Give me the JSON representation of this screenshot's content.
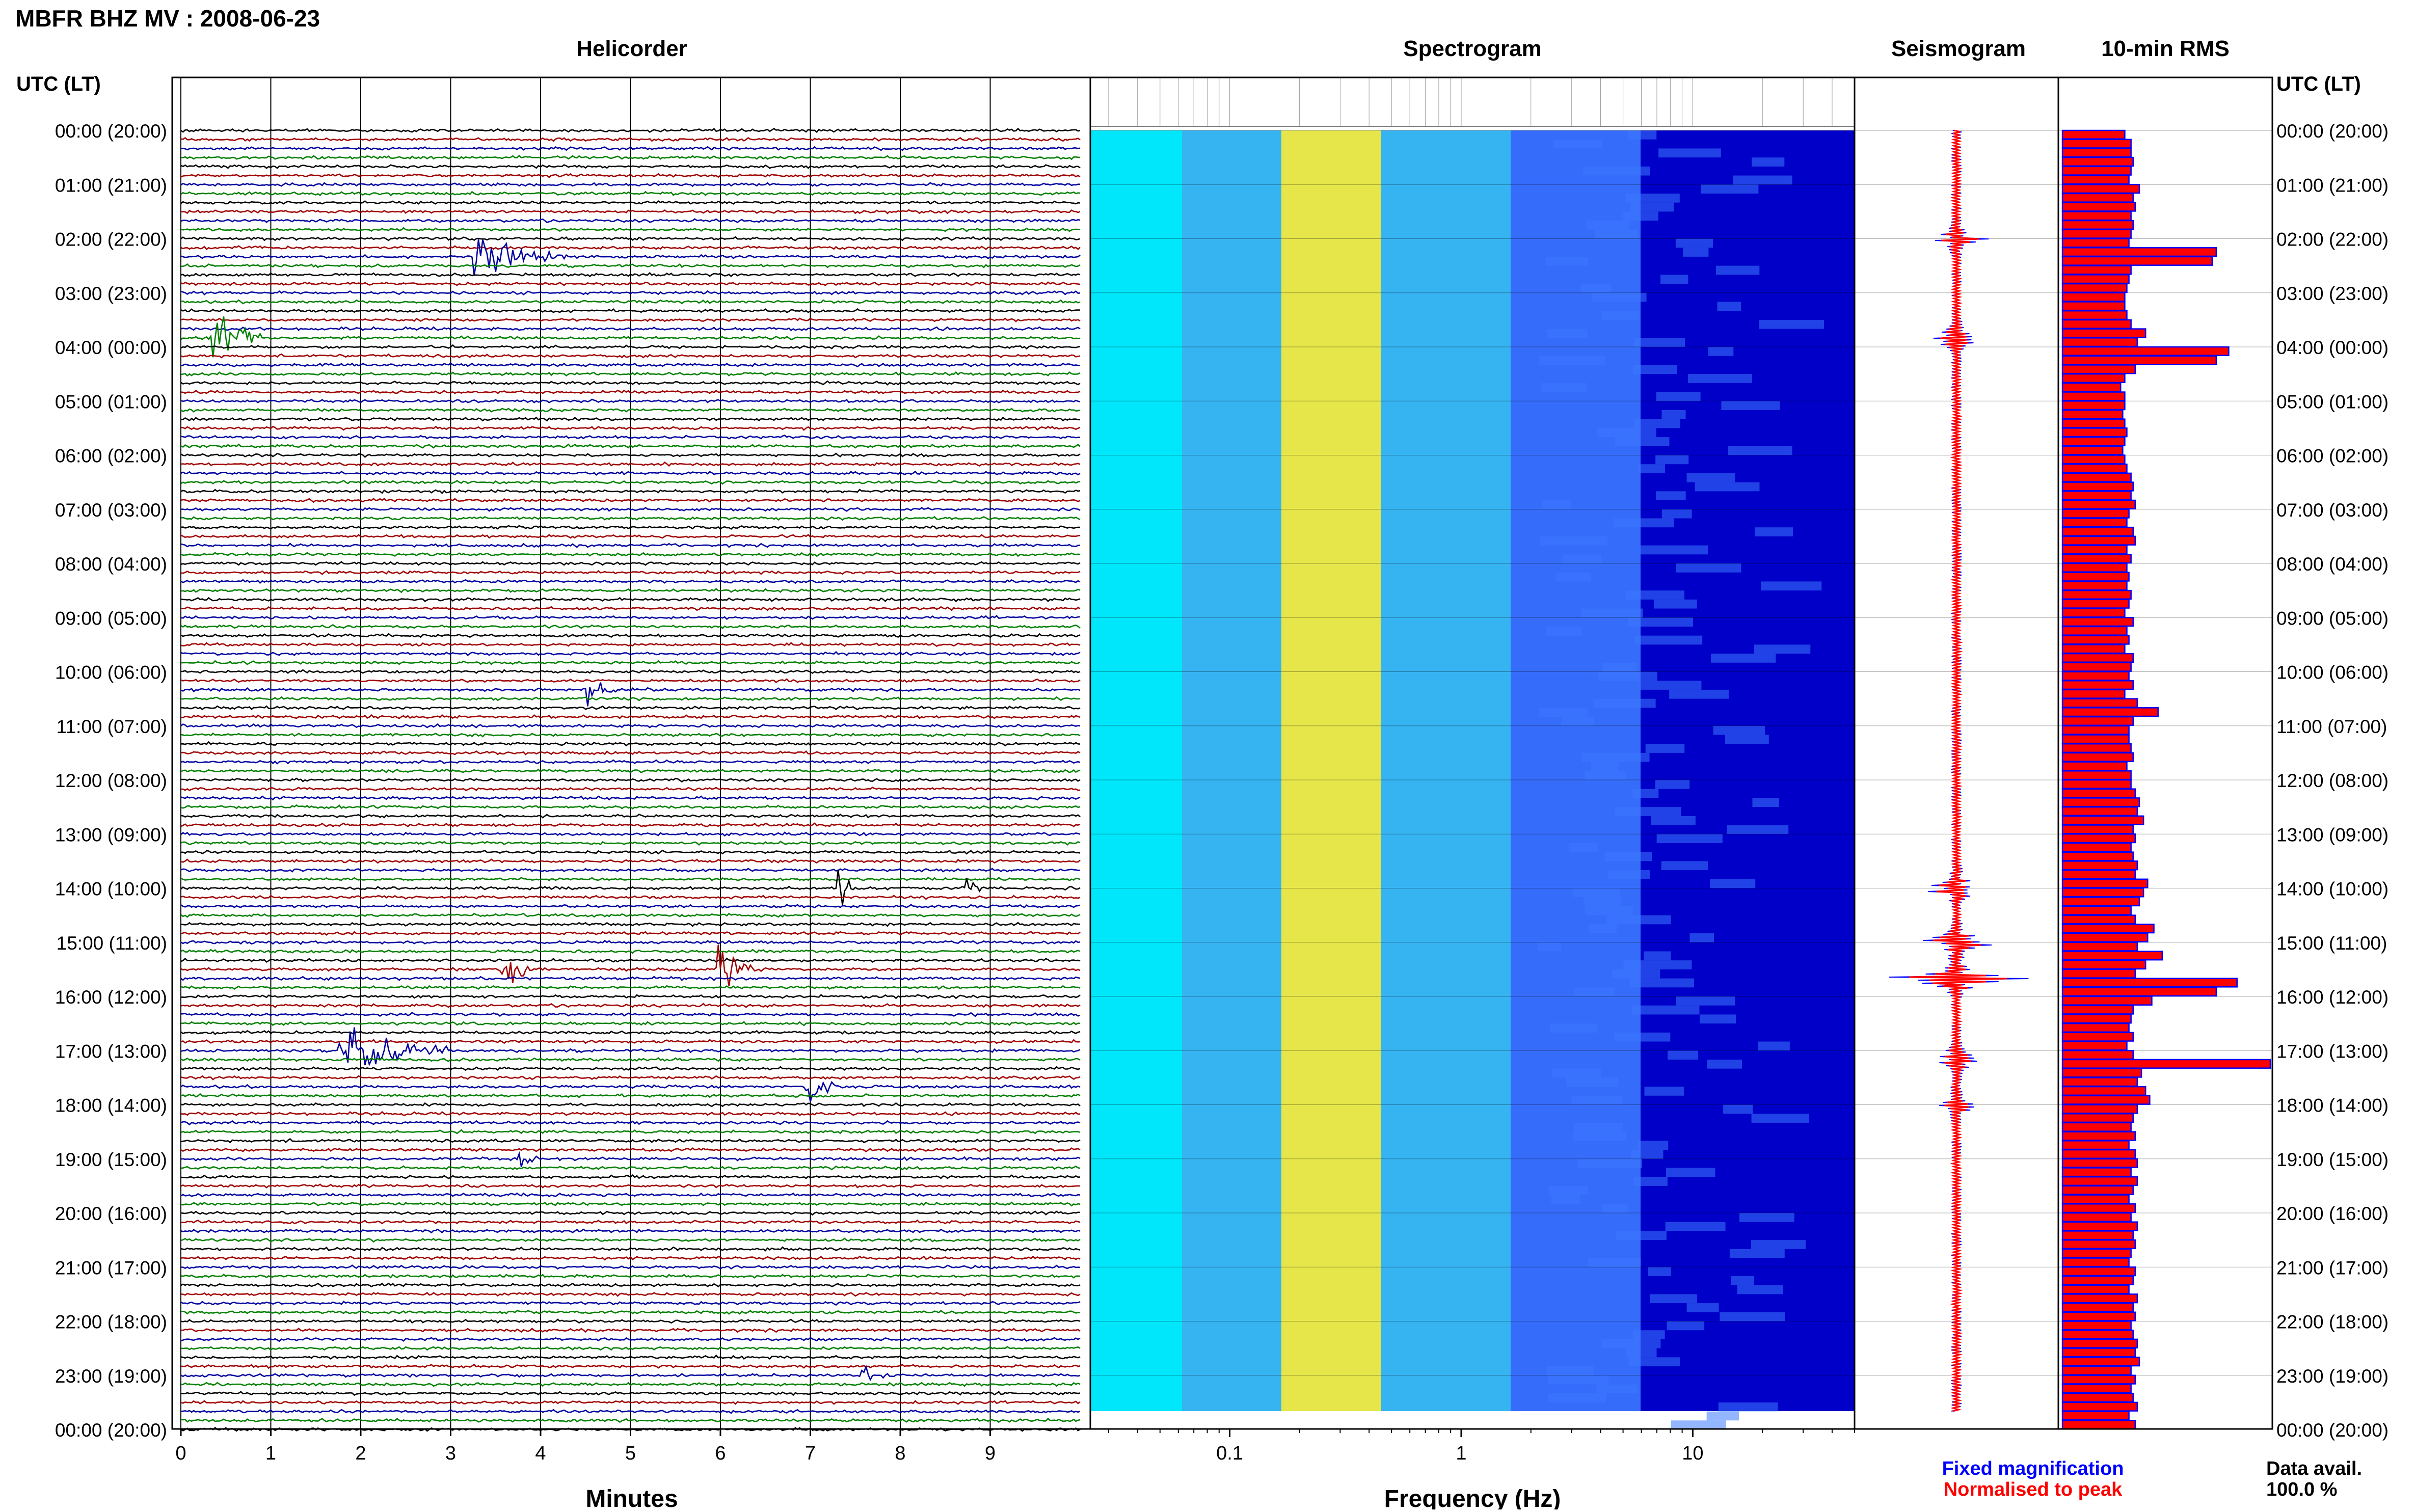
{
  "page_title": "MBFR BHZ MV : 2008-06-23",
  "headers": {
    "helicorder": "Helicorder",
    "spectrogram": "Spectrogram",
    "seismogram": "Seismogram",
    "rms": "10-min RMS",
    "utc_left": "UTC (LT)",
    "utc_right": "UTC (LT)"
  },
  "colors": {
    "trace_cycle": [
      "#000000",
      "#a00000",
      "#0000a0",
      "#008000"
    ],
    "fixed": "#0000ff",
    "normalised": "#ff0000"
  },
  "time_labels": [
    "00:00 (20:00)",
    "01:00 (21:00)",
    "02:00 (22:00)",
    "03:00 (23:00)",
    "04:00 (00:00)",
    "05:00 (01:00)",
    "06:00 (02:00)",
    "07:00 (03:00)",
    "08:00 (04:00)",
    "09:00 (05:00)",
    "10:00 (06:00)",
    "11:00 (07:00)",
    "12:00 (08:00)",
    "13:00 (09:00)",
    "14:00 (10:00)",
    "15:00 (11:00)",
    "16:00 (12:00)",
    "17:00 (13:00)",
    "18:00 (14:00)",
    "19:00 (15:00)",
    "20:00 (16:00)",
    "21:00 (17:00)",
    "22:00 (18:00)",
    "23:00 (19:00)",
    "00:00 (20:00)"
  ],
  "legend": {
    "fixed": "Fixed magnification",
    "normalised": "Normalised to peak"
  },
  "data_avail": {
    "label": "Data avail.",
    "value": "100.0 %"
  },
  "chart_data": [
    {
      "type": "line",
      "name": "helicorder",
      "title": "Helicorder",
      "xlabel": "Minutes",
      "xticks": [
        0,
        1,
        2,
        3,
        4,
        5,
        6,
        7,
        8,
        9
      ],
      "xlim": [
        0,
        10
      ],
      "rows_per_hour": 6,
      "events": [
        {
          "time": "02:20",
          "minute": 3.3,
          "amp": 0.85,
          "dur": 1.0
        },
        {
          "time": "03:50",
          "minute": 0.35,
          "amp": 1.0,
          "dur": 0.6
        },
        {
          "time": "10:20",
          "minute": 4.55,
          "amp": 0.6,
          "dur": 0.3
        },
        {
          "time": "14:00",
          "minute": 7.35,
          "amp": 0.6,
          "dur": 0.15
        },
        {
          "time": "14:00",
          "minute": 8.75,
          "amp": 0.6,
          "dur": 0.15
        },
        {
          "time": "15:30",
          "minute": 3.6,
          "amp": 0.9,
          "dur": 0.4
        },
        {
          "time": "15:30",
          "minute": 6.0,
          "amp": 0.9,
          "dur": 0.4
        },
        {
          "time": "17:00",
          "minute": 1.8,
          "amp": 0.9,
          "dur": 1.2
        },
        {
          "time": "17:40",
          "minute": 7.0,
          "amp": 0.6,
          "dur": 0.3
        },
        {
          "time": "19:00",
          "minute": 3.8,
          "amp": 0.35,
          "dur": 0.2
        },
        {
          "time": "23:00",
          "minute": 7.6,
          "amp": 0.3,
          "dur": 0.3
        }
      ]
    },
    {
      "type": "heatmap",
      "name": "spectrogram",
      "title": "Spectrogram",
      "xlabel": "Frequency (Hz)",
      "x_scale": "log",
      "xlim": [
        0.025,
        50
      ],
      "xticks": [
        0.1,
        1,
        10
      ],
      "xtick_labels": [
        "0.1",
        "1",
        "10"
      ],
      "colormap": [
        "#00ffff",
        "#3cc8f5",
        "#ffff3c",
        "#3c78ff",
        "#0000c8"
      ]
    },
    {
      "type": "line",
      "name": "seismogram",
      "title": "Seismogram",
      "series": [
        "Fixed magnification",
        "Normalised to peak"
      ],
      "peaks": [
        {
          "time": "02:00",
          "amp": 0.35
        },
        {
          "time": "03:50",
          "amp": 0.4
        },
        {
          "time": "14:00",
          "amp": 0.5
        },
        {
          "time": "15:00",
          "amp": 0.6
        },
        {
          "time": "15:40",
          "amp": 0.9
        },
        {
          "time": "17:10",
          "amp": 0.4
        },
        {
          "time": "18:00",
          "amp": 0.3
        }
      ]
    },
    {
      "type": "bar",
      "name": "rms",
      "title": "10-min RMS",
      "orientation": "horizontal",
      "interval_minutes": 10,
      "values": [
        0.3,
        0.33,
        0.33,
        0.34,
        0.33,
        0.32,
        0.37,
        0.34,
        0.35,
        0.33,
        0.34,
        0.33,
        0.32,
        0.74,
        0.72,
        0.33,
        0.32,
        0.31,
        0.3,
        0.3,
        0.31,
        0.33,
        0.4,
        0.36,
        0.8,
        0.74,
        0.35,
        0.3,
        0.28,
        0.3,
        0.3,
        0.29,
        0.3,
        0.31,
        0.3,
        0.29,
        0.3,
        0.31,
        0.33,
        0.34,
        0.33,
        0.35,
        0.32,
        0.31,
        0.34,
        0.35,
        0.31,
        0.33,
        0.31,
        0.32,
        0.31,
        0.33,
        0.32,
        0.3,
        0.34,
        0.31,
        0.32,
        0.3,
        0.34,
        0.33,
        0.32,
        0.34,
        0.3,
        0.36,
        0.46,
        0.34,
        0.32,
        0.32,
        0.33,
        0.34,
        0.31,
        0.33,
        0.33,
        0.35,
        0.37,
        0.36,
        0.39,
        0.34,
        0.35,
        0.33,
        0.34,
        0.36,
        0.35,
        0.41,
        0.39,
        0.37,
        0.33,
        0.35,
        0.44,
        0.41,
        0.36,
        0.48,
        0.4,
        0.35,
        0.84,
        0.74,
        0.43,
        0.34,
        0.33,
        0.32,
        0.34,
        0.31,
        0.34,
        1.0,
        0.38,
        0.36,
        0.4,
        0.42,
        0.36,
        0.34,
        0.33,
        0.35,
        0.32,
        0.35,
        0.36,
        0.33,
        0.36,
        0.34,
        0.32,
        0.35,
        0.33,
        0.36,
        0.34,
        0.35,
        0.33,
        0.32,
        0.35,
        0.34,
        0.32,
        0.36,
        0.34,
        0.35,
        0.33,
        0.34,
        0.36,
        0.35,
        0.37,
        0.33,
        0.35,
        0.33,
        0.34,
        0.36,
        0.32,
        0.35
      ]
    }
  ]
}
